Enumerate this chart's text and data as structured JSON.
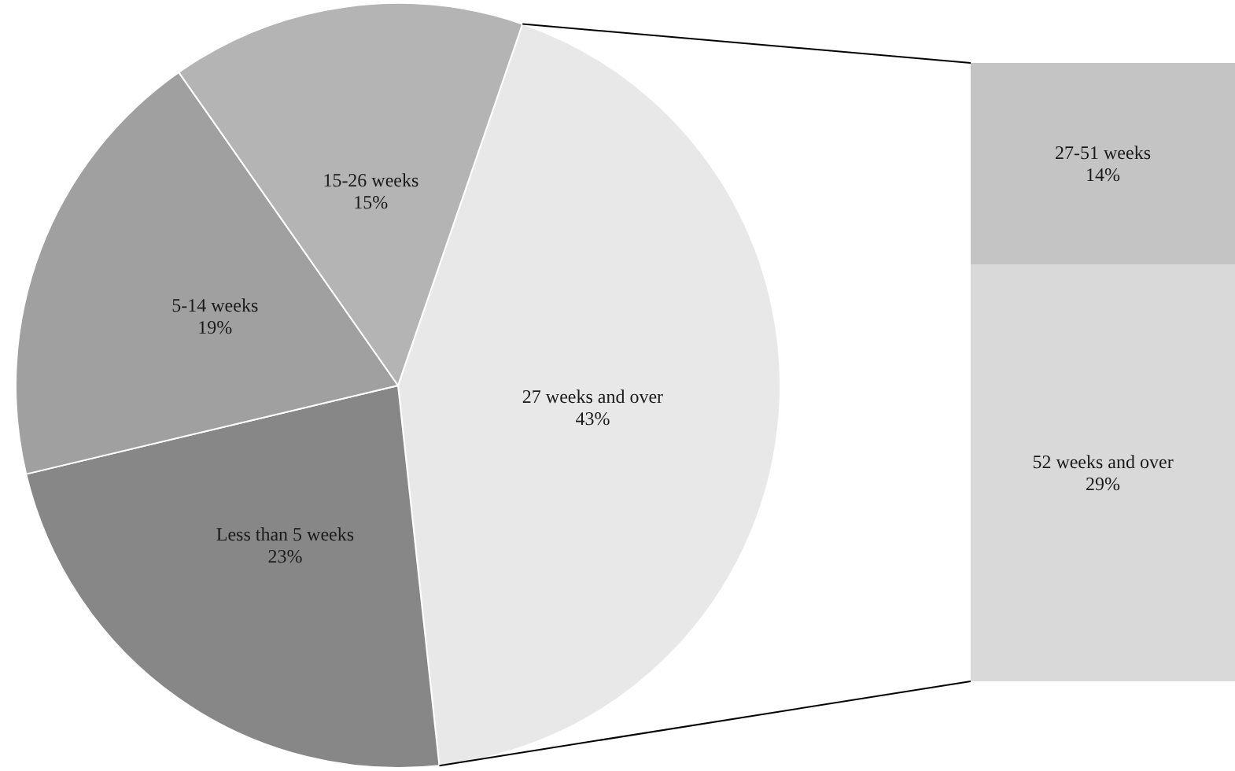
{
  "chart_data": [
    {
      "type": "pie",
      "categories": [
        "27 weeks and over",
        "Less than 5 weeks",
        "5-14 weeks",
        "15-26 weeks"
      ],
      "values": [
        43,
        23,
        19,
        15
      ],
      "colors": [
        "#e8e8e8",
        "#878787",
        "#a0a0a0",
        "#b4b4b4"
      ],
      "value_labels": [
        "43%",
        "23%",
        "19%",
        "15%"
      ]
    },
    {
      "type": "bar",
      "stacked": true,
      "categories": [
        null
      ],
      "ylim": [
        0,
        43
      ],
      "tick_labels": false,
      "series": [
        {
          "name": "52 weeks and over",
          "color": "#d9d9d9",
          "values": [
            29
          ],
          "value_labels": [
            "29%"
          ]
        },
        {
          "name": "27-51 weeks",
          "color": "#c4c4c4",
          "values": [
            14
          ],
          "value_labels": [
            "14%"
          ]
        }
      ]
    }
  ]
}
